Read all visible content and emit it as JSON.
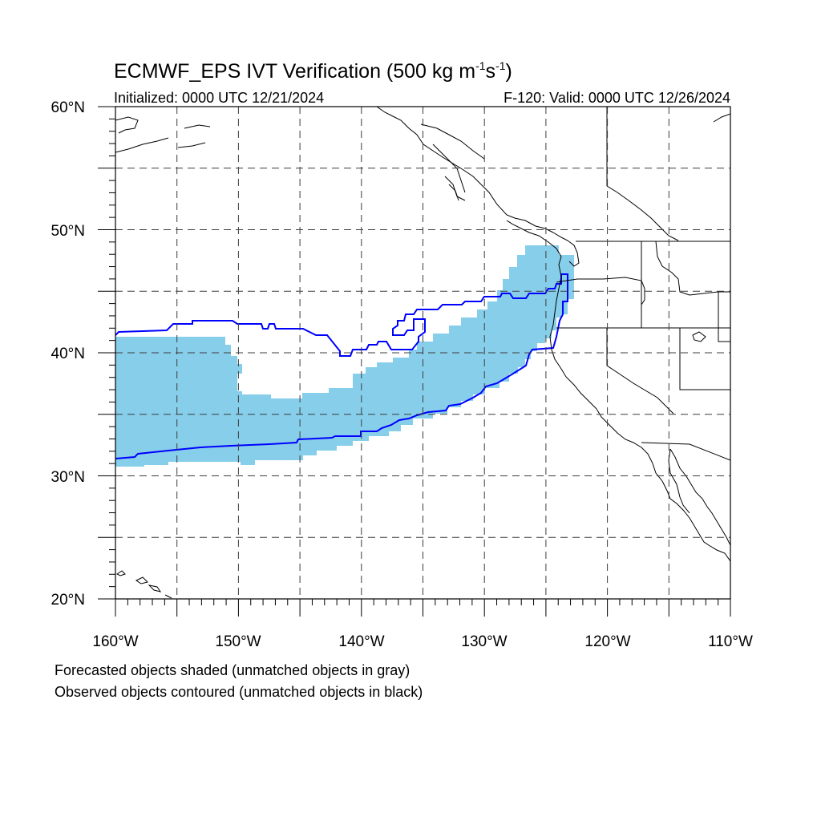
{
  "map": {
    "title_main": "ECMWF_EPS IVT Verification (500 kg m",
    "title_exp1": "-1",
    "title_mid": "s",
    "title_exp2": "-1",
    "title_end": ")",
    "initialized": "Initialized: 0000 UTC 12/21/2024",
    "valid": "F-120: Valid: 0000 UTC 12/26/2024",
    "lat_labels": [
      "60°N",
      "50°N",
      "40°N",
      "30°N",
      "20°N"
    ],
    "lon_labels": [
      "160°W",
      "150°W",
      "140°W",
      "130°W",
      "120°W",
      "110°W"
    ],
    "extent": {
      "lon_min": -160,
      "lon_max": -110,
      "lat_min": 20,
      "lat_max": 60
    },
    "projection": "cylindrical equidistant",
    "grid": "dashed, every 5 degrees"
  },
  "objects": {
    "forecast_color": "#87ceeb",
    "observed_color": "#0000ff",
    "forecast_object": "matched",
    "observed_object": "matched"
  },
  "notes": {
    "forecast": "Forecasted objects shaded (unmatched objects in gray)",
    "observed": "Observed objects contoured (unmatched objects in black)"
  }
}
